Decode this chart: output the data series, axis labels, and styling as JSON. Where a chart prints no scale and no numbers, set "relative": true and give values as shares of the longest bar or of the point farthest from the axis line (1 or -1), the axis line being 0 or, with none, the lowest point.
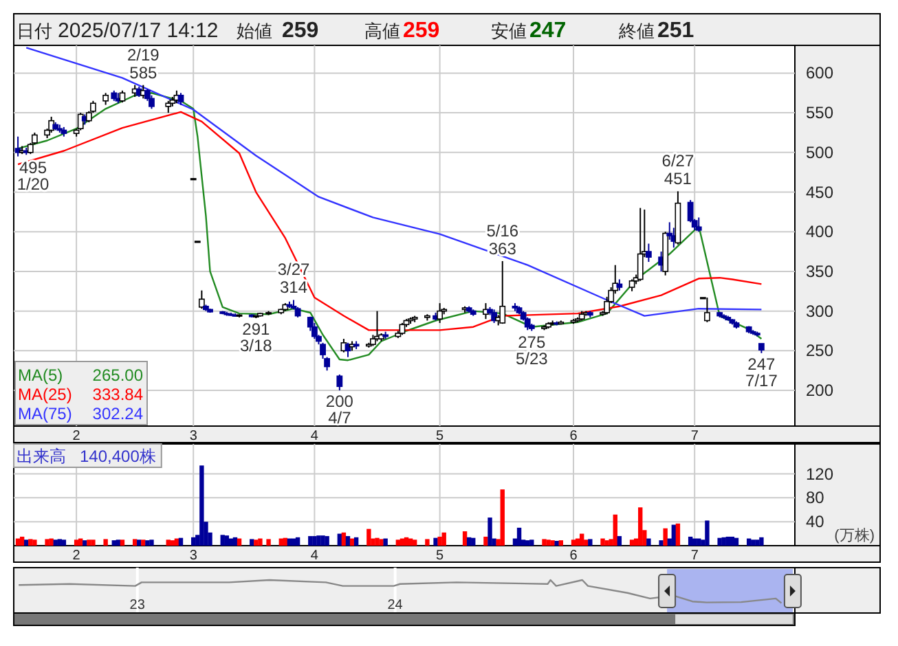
{
  "chart_data": [
    {
      "type": "other",
      "annotations": [
        "日付",
        "2025/07/17 14:12",
        "始値",
        "259",
        "高値",
        "259",
        "安値",
        "247",
        "終値",
        "251"
      ]
    },
    {
      "type": "candlestick",
      "grid": true,
      "legend": "bottom left",
      "colors": [
        "#000099",
        "#ffffff",
        "#000099",
        "#ffffff",
        "#ffffff",
        "#ffffff",
        "#ffffff",
        "#000099",
        "#000099",
        "#000099",
        "#ffffff",
        "#ffffff",
        "#000099",
        "#ffffff",
        "#ffffff",
        "#ffffff",
        "#000099",
        "#000099",
        "#ffffff",
        "#ffffff",
        "#000099",
        "#ffffff",
        "#000099",
        "#000099",
        "#ffffff",
        "#ffffff",
        "#ffffff",
        "#000099",
        "#000000",
        "#000000",
        "#ffffff",
        "#000099",
        "#000099",
        "#000099",
        "#000099",
        "#000099",
        "#000099",
        "#ffffff",
        "#000099",
        "#ffffff",
        "#ffffff",
        "#ffffff",
        "#ffffff",
        "#ffffff",
        "#000099",
        "#000099",
        "#000099",
        "#000099",
        "#000099",
        "#000099",
        "#000099",
        "#000099",
        "#000099",
        "#ffffff",
        "#000099",
        "#ffffff",
        "#000099",
        "#ffffff",
        "#ffffff",
        "#ffffff",
        "#ffffff",
        "#000099",
        "#ffffff",
        "#ffffff",
        "#ffffff",
        "#ffffff",
        "#ffffff",
        "#ffffff",
        "#000099",
        "#ffffff",
        "#ffffff",
        "#ffffff",
        "#000099",
        "#000099",
        "#ffffff",
        "#000099",
        "#000099",
        "#ffffff",
        "#ffffff",
        "#000099",
        "#000099",
        "#000099",
        "#000099",
        "#000099",
        "#ffffff",
        "#ffffff",
        "#ffffff",
        "#000099",
        "#ffffff",
        "#ffffff",
        "#ffffff",
        "#ffffff",
        "#ffffff",
        "#000099",
        "#ffffff",
        "#ffffff",
        "#ffffff",
        "#ffffff",
        "#000099",
        "#ffffff",
        "#ffffff",
        "#ffffff",
        "#ffffff",
        "#000099",
        "#000099",
        "#ffffff",
        "#000099",
        "#000099",
        "#ffffff",
        "#000099",
        "#000099",
        "#000099",
        "#000000",
        "#ffffff",
        "#000099",
        "#000099",
        "#000099",
        "#000099",
        "#000099",
        "#000099",
        "#000099",
        "#000099",
        "#000099"
      ],
      "x": [
        "2025-01-20",
        "2025-01-21",
        "2025-01-22",
        "2025-01-23",
        "2025-01-24",
        "2025-01-27",
        "2025-01-28",
        "2025-01-29",
        "2025-01-30",
        "2025-01-31",
        "2025-02-03",
        "2025-02-04",
        "2025-02-05",
        "2025-02-06",
        "2025-02-07",
        "2025-02-10",
        "2025-02-12",
        "2025-02-13",
        "2025-02-14",
        "2025-02-17",
        "2025-02-18",
        "2025-02-19",
        "2025-02-20",
        "2025-02-21",
        "2025-02-25",
        "2025-02-26",
        "2025-02-27",
        "2025-02-28",
        "2025-03-03",
        "2025-03-04",
        "2025-03-05",
        "2025-03-06",
        "2025-03-07",
        "2025-03-10",
        "2025-03-11",
        "2025-03-12",
        "2025-03-13",
        "2025-03-14",
        "2025-03-17",
        "2025-03-18",
        "2025-03-19",
        "2025-03-21",
        "2025-03-24",
        "2025-03-25",
        "2025-03-26",
        "2025-03-27",
        "2025-03-28",
        "2025-03-31",
        "2025-04-01",
        "2025-04-02",
        "2025-04-03",
        "2025-04-04",
        "2025-04-07",
        "2025-04-08",
        "2025-04-09",
        "2025-04-10",
        "2025-04-11",
        "2025-04-14",
        "2025-04-15",
        "2025-04-16",
        "2025-04-17",
        "2025-04-18",
        "2025-04-21",
        "2025-04-22",
        "2025-04-23",
        "2025-04-24",
        "2025-04-25",
        "2025-04-28",
        "2025-04-30",
        "2025-05-01",
        "2025-05-02",
        "2025-05-07",
        "2025-05-08",
        "2025-05-09",
        "2025-05-12",
        "2025-05-13",
        "2025-05-14",
        "2025-05-15",
        "2025-05-16",
        "2025-05-19",
        "2025-05-20",
        "2025-05-21",
        "2025-05-22",
        "2025-05-23",
        "2025-05-26",
        "2025-05-27",
        "2025-05-28",
        "2025-05-29",
        "2025-05-30",
        "2025-06-02",
        "2025-06-03",
        "2025-06-04",
        "2025-06-05",
        "2025-06-06",
        "2025-06-09",
        "2025-06-10",
        "2025-06-11",
        "2025-06-12",
        "2025-06-13",
        "2025-06-16",
        "2025-06-17",
        "2025-06-18",
        "2025-06-19",
        "2025-06-20",
        "2025-06-23",
        "2025-06-24",
        "2025-06-25",
        "2025-06-26",
        "2025-06-27",
        "2025-06-30",
        "2025-07-01",
        "2025-07-02",
        "2025-07-03",
        "2025-07-04",
        "2025-07-07",
        "2025-07-08",
        "2025-07-09",
        "2025-07-10",
        "2025-07-11",
        "2025-07-14",
        "2025-07-15",
        "2025-07-16",
        "2025-07-17"
      ],
      "ohlc": [
        [
          505,
          520,
          495,
          500
        ],
        [
          500,
          508,
          498,
          502
        ],
        [
          502,
          506,
          497,
          500
        ],
        [
          500,
          512,
          498,
          510
        ],
        [
          512,
          525,
          510,
          522
        ],
        [
          522,
          530,
          518,
          528
        ],
        [
          528,
          545,
          525,
          540
        ],
        [
          535,
          538,
          528,
          530
        ],
        [
          530,
          535,
          525,
          528
        ],
        [
          528,
          532,
          520,
          524
        ],
        [
          524,
          530,
          520,
          528
        ],
        [
          530,
          550,
          528,
          548
        ],
        [
          545,
          548,
          535,
          540
        ],
        [
          540,
          552,
          538,
          550
        ],
        [
          552,
          565,
          550,
          562
        ],
        [
          565,
          575,
          560,
          572
        ],
        [
          575,
          578,
          565,
          568
        ],
        [
          568,
          575,
          562,
          565
        ],
        [
          565,
          578,
          563,
          575
        ],
        [
          575,
          585,
          570,
          580
        ],
        [
          580,
          583,
          570,
          572
        ],
        [
          572,
          585,
          568,
          578
        ],
        [
          578,
          580,
          565,
          568
        ],
        [
          568,
          572,
          555,
          558
        ],
        [
          558,
          565,
          550,
          562
        ],
        [
          562,
          570,
          558,
          566
        ],
        [
          566,
          578,
          562,
          572
        ],
        [
          572,
          575,
          560,
          564
        ],
        [
          467,
          467,
          467,
          467
        ],
        [
          388,
          388,
          388,
          388
        ],
        [
          305,
          326,
          303,
          315
        ],
        [
          306,
          308,
          300,
          302
        ],
        [
          302,
          303,
          298,
          299
        ],
        [
          299,
          300,
          296,
          297
        ],
        [
          297,
          299,
          294,
          296
        ],
        [
          296,
          298,
          294,
          295
        ],
        [
          295,
          297,
          293,
          294
        ],
        [
          294,
          296,
          292,
          295
        ],
        [
          295,
          296,
          292,
          293
        ],
        [
          293,
          295,
          291,
          294
        ],
        [
          294,
          298,
          293,
          297
        ],
        [
          297,
          300,
          295,
          298
        ],
        [
          298,
          303,
          296,
          302
        ],
        [
          302,
          310,
          300,
          308
        ],
        [
          308,
          312,
          304,
          306
        ],
        [
          306,
          314,
          302,
          304
        ],
        [
          303,
          305,
          292,
          294
        ],
        [
          292,
          293,
          275,
          280
        ],
        [
          280,
          285,
          265,
          268
        ],
        [
          268,
          270,
          258,
          262
        ],
        [
          258,
          260,
          240,
          245
        ],
        [
          240,
          242,
          225,
          230
        ],
        [
          218,
          220,
          200,
          205
        ],
        [
          250,
          265,
          248,
          260
        ],
        [
          258,
          260,
          242,
          250
        ],
        [
          255,
          262,
          250,
          258
        ],
        [
          258,
          262,
          252,
          256
        ],
        [
          256,
          260,
          254,
          258
        ],
        [
          258,
          270,
          256,
          265
        ],
        [
          265,
          300,
          262,
          268
        ],
        [
          265,
          272,
          262,
          270
        ],
        [
          270,
          274,
          265,
          268
        ],
        [
          268,
          275,
          266,
          272
        ],
        [
          272,
          285,
          270,
          283
        ],
        [
          283,
          290,
          280,
          288
        ],
        [
          288,
          292,
          284,
          290
        ],
        [
          290,
          294,
          286,
          292
        ],
        [
          292,
          296,
          288,
          294
        ],
        [
          294,
          298,
          288,
          290
        ],
        [
          290,
          310,
          285,
          300
        ],
        [
          300,
          304,
          296,
          302
        ],
        [
          302,
          306,
          298,
          304
        ],
        [
          304,
          306,
          298,
          300
        ],
        [
          300,
          302,
          294,
          296
        ],
        [
          296,
          310,
          290,
          302
        ],
        [
          302,
          305,
          295,
          298
        ],
        [
          298,
          302,
          285,
          288
        ],
        [
          288,
          295,
          282,
          292
        ],
        [
          285,
          363,
          284,
          306
        ],
        [
          306,
          310,
          300,
          304
        ],
        [
          304,
          306,
          296,
          298
        ],
        [
          298,
          300,
          288,
          290
        ],
        [
          290,
          292,
          276,
          280
        ],
        [
          282,
          284,
          275,
          278
        ],
        [
          278,
          282,
          276,
          280
        ],
        [
          280,
          286,
          278,
          284
        ],
        [
          284,
          288,
          282,
          285
        ],
        [
          285,
          287,
          282,
          284
        ],
        [
          284,
          288,
          283,
          286
        ],
        [
          286,
          290,
          284,
          288
        ],
        [
          288,
          292,
          286,
          290
        ],
        [
          290,
          300,
          288,
          296
        ],
        [
          296,
          300,
          294,
          298
        ],
        [
          298,
          300,
          292,
          295
        ],
        [
          296,
          300,
          294,
          298
        ],
        [
          298,
          318,
          296,
          312
        ],
        [
          312,
          330,
          310,
          326
        ],
        [
          326,
          358,
          322,
          335
        ],
        [
          334,
          340,
          326,
          330
        ],
        [
          330,
          340,
          325,
          338
        ],
        [
          338,
          346,
          334,
          342
        ],
        [
          340,
          430,
          338,
          372
        ],
        [
          372,
          428,
          368,
          375
        ],
        [
          375,
          385,
          362,
          368
        ],
        [
          368,
          375,
          350,
          358
        ],
        [
          350,
          400,
          345,
          398
        ],
        [
          398,
          412,
          390,
          395
        ],
        [
          395,
          405,
          380,
          388
        ],
        [
          386,
          451,
          384,
          436
        ],
        [
          437,
          440,
          412,
          414
        ],
        [
          414,
          416,
          402,
          406
        ],
        [
          406,
          418,
          400,
          402
        ],
        [
          317,
          317,
          317,
          317
        ],
        [
          288,
          317,
          286,
          298
        ],
        [
          298,
          299,
          292,
          294
        ],
        [
          294,
          296,
          290,
          292
        ],
        [
          292,
          294,
          288,
          289
        ],
        [
          289,
          290,
          283,
          285
        ],
        [
          285,
          287,
          278,
          280
        ],
        [
          280,
          281,
          272,
          274
        ],
        [
          274,
          276,
          270,
          272
        ],
        [
          272,
          274,
          268,
          270
        ],
        [
          259,
          259,
          247,
          251
        ]
      ],
      "series": [
        {
          "name": "MA(5)",
          "type": "line",
          "color": "#228b22",
          "x": [
            "2025-01-20",
            "2025-01-27",
            "2025-02-03",
            "2025-02-10",
            "2025-02-17",
            "2025-02-21",
            "2025-02-28",
            "2025-03-03",
            "2025-03-04",
            "2025-03-05",
            "2025-03-06",
            "2025-03-07",
            "2025-03-10",
            "2025-03-14",
            "2025-03-21",
            "2025-03-27",
            "2025-03-31",
            "2025-04-03",
            "2025-04-07",
            "2025-04-09",
            "2025-04-14",
            "2025-04-17",
            "2025-04-23",
            "2025-04-30",
            "2025-05-09",
            "2025-05-16",
            "2025-05-23",
            "2025-06-03",
            "2025-06-10",
            "2025-06-17",
            "2025-06-25",
            "2025-07-02",
            "2025-07-07",
            "2025-07-14",
            "2025-07-17"
          ],
          "values": [
            505,
            515,
            530,
            555,
            572,
            575,
            565,
            555,
            520,
            470,
            420,
            350,
            305,
            297,
            296,
            303,
            298,
            270,
            239,
            238,
            245,
            262,
            275,
            288,
            300,
            297,
            280,
            286,
            297,
            340,
            372,
            407,
            294,
            277,
            265
          ]
        },
        {
          "name": "MA(25)",
          "type": "line",
          "color": "#ff0000",
          "x": [
            "2025-01-20",
            "2025-01-31",
            "2025-02-14",
            "2025-02-28",
            "2025-03-05",
            "2025-03-14",
            "2025-03-18",
            "2025-03-25",
            "2025-04-01",
            "2025-04-08",
            "2025-04-14",
            "2025-05-01",
            "2025-05-09",
            "2025-05-16",
            "2025-06-03",
            "2025-06-13",
            "2025-06-23",
            "2025-07-02",
            "2025-07-07",
            "2025-07-10",
            "2025-07-17"
          ],
          "values": [
            485,
            502,
            531,
            551,
            539,
            499,
            450,
            392,
            317,
            294,
            276,
            276,
            280,
            294,
            297,
            306,
            320,
            341,
            342,
            340,
            334
          ]
        },
        {
          "name": "MA(75)",
          "type": "line",
          "color": "#3333ff",
          "x": [
            "2025-01-22",
            "2025-02-14",
            "2025-03-03",
            "2025-03-18",
            "2025-04-02",
            "2025-04-15",
            "2025-05-01",
            "2025-05-22",
            "2025-06-10",
            "2025-06-19",
            "2025-07-02",
            "2025-07-17"
          ],
          "values": [
            632,
            594,
            554,
            496,
            444,
            418,
            397,
            358,
            314,
            294,
            303,
            302
          ]
        }
      ],
      "annotations": [
        {
          "text": "495",
          "x": "2025-01-20",
          "y": 495
        },
        {
          "text": "1/20",
          "x": "2025-01-20",
          "y": 495
        },
        {
          "text": "585",
          "x": "2025-02-19",
          "y": 585
        },
        {
          "text": "2/19",
          "x": "2025-02-19",
          "y": 585
        },
        {
          "text": "291",
          "x": "2025-03-18",
          "y": 291
        },
        {
          "text": "3/18",
          "x": "2025-03-18",
          "y": 291
        },
        {
          "text": "314",
          "x": "2025-03-27",
          "y": 314
        },
        {
          "text": "3/27",
          "x": "2025-03-27",
          "y": 314
        },
        {
          "text": "200",
          "x": "2025-04-07",
          "y": 200
        },
        {
          "text": "4/7",
          "x": "2025-04-07",
          "y": 200
        },
        {
          "text": "363",
          "x": "2025-05-16",
          "y": 363
        },
        {
          "text": "5/16",
          "x": "2025-05-16",
          "y": 363
        },
        {
          "text": "275",
          "x": "2025-05-23",
          "y": 275
        },
        {
          "text": "5/23",
          "x": "2025-05-23",
          "y": 275
        },
        {
          "text": "451",
          "x": "2025-06-27",
          "y": 451
        },
        {
          "text": "6/27",
          "x": "2025-06-27",
          "y": 451
        },
        {
          "text": "247",
          "x": "2025-07-17",
          "y": 247
        },
        {
          "text": "7/17",
          "x": "2025-07-17",
          "y": 247
        },
        "265.00",
        "333.84",
        "302.24"
      ],
      "xlim": [
        "2025-01-19",
        "2025-07-25"
      ],
      "xticks": [
        {
          "value": "2025-02-03",
          "label": "2"
        },
        {
          "value": "2025-03-03",
          "label": "3"
        },
        {
          "value": "2025-04-01",
          "label": "4"
        },
        {
          "value": "2025-05-01",
          "label": "5"
        },
        {
          "value": "2025-06-02",
          "label": "6"
        },
        {
          "value": "2025-07-01",
          "label": "7"
        }
      ],
      "ylim": [
        155,
        635
      ],
      "yticks": [
        200,
        250,
        300,
        350,
        400,
        450,
        500,
        550,
        600
      ]
    },
    {
      "type": "bar",
      "title": "出来高",
      "ylabel": "(万株)",
      "annotations": [
        "140,400株"
      ],
      "grid": true,
      "x": [
        "2025-01-20",
        "2025-01-21",
        "2025-01-22",
        "2025-01-23",
        "2025-01-24",
        "2025-01-27",
        "2025-01-28",
        "2025-01-29",
        "2025-01-30",
        "2025-01-31",
        "2025-02-03",
        "2025-02-04",
        "2025-02-05",
        "2025-02-06",
        "2025-02-07",
        "2025-02-10",
        "2025-02-12",
        "2025-02-13",
        "2025-02-14",
        "2025-02-17",
        "2025-02-18",
        "2025-02-19",
        "2025-02-20",
        "2025-02-21",
        "2025-02-25",
        "2025-02-26",
        "2025-02-27",
        "2025-02-28",
        "2025-03-03",
        "2025-03-04",
        "2025-03-05",
        "2025-03-06",
        "2025-03-07",
        "2025-03-10",
        "2025-03-11",
        "2025-03-12",
        "2025-03-13",
        "2025-03-14",
        "2025-03-17",
        "2025-03-18",
        "2025-03-19",
        "2025-03-21",
        "2025-03-24",
        "2025-03-25",
        "2025-03-26",
        "2025-03-27",
        "2025-03-28",
        "2025-03-31",
        "2025-04-01",
        "2025-04-02",
        "2025-04-03",
        "2025-04-04",
        "2025-04-07",
        "2025-04-08",
        "2025-04-09",
        "2025-04-10",
        "2025-04-11",
        "2025-04-14",
        "2025-04-15",
        "2025-04-16",
        "2025-04-17",
        "2025-04-18",
        "2025-04-21",
        "2025-04-22",
        "2025-04-23",
        "2025-04-24",
        "2025-04-25",
        "2025-04-28",
        "2025-04-30",
        "2025-05-01",
        "2025-05-02",
        "2025-05-07",
        "2025-05-08",
        "2025-05-09",
        "2025-05-12",
        "2025-05-13",
        "2025-05-14",
        "2025-05-15",
        "2025-05-16",
        "2025-05-19",
        "2025-05-20",
        "2025-05-21",
        "2025-05-22",
        "2025-05-23",
        "2025-05-26",
        "2025-05-27",
        "2025-05-28",
        "2025-05-29",
        "2025-05-30",
        "2025-06-02",
        "2025-06-03",
        "2025-06-04",
        "2025-06-05",
        "2025-06-06",
        "2025-06-09",
        "2025-06-10",
        "2025-06-11",
        "2025-06-12",
        "2025-06-13",
        "2025-06-16",
        "2025-06-17",
        "2025-06-18",
        "2025-06-19",
        "2025-06-20",
        "2025-06-23",
        "2025-06-24",
        "2025-06-25",
        "2025-06-26",
        "2025-06-27",
        "2025-06-30",
        "2025-07-01",
        "2025-07-02",
        "2025-07-03",
        "2025-07-04",
        "2025-07-07",
        "2025-07-08",
        "2025-07-09",
        "2025-07-10",
        "2025-07-11",
        "2025-07-14",
        "2025-07-15",
        "2025-07-16",
        "2025-07-17"
      ],
      "values": [
        12,
        15,
        10,
        11,
        10,
        11,
        12,
        10,
        11,
        10,
        10,
        12,
        9,
        10,
        10,
        11,
        9,
        10,
        10,
        11,
        10,
        10,
        9,
        10,
        10,
        9,
        12,
        13,
        14,
        18,
        134,
        40,
        22,
        18,
        17,
        12,
        14,
        12,
        11,
        10,
        12,
        11,
        12,
        13,
        12,
        12,
        14,
        16,
        16,
        17,
        17,
        16,
        20,
        22,
        16,
        12,
        14,
        28,
        12,
        13,
        11,
        12,
        10,
        12,
        14,
        12,
        10,
        11,
        13,
        15,
        22,
        24,
        14,
        13,
        15,
        47,
        12,
        11,
        94,
        12,
        30,
        10,
        9,
        10,
        11,
        10,
        9,
        8,
        9,
        10,
        12,
        20,
        10,
        11,
        12,
        9,
        11,
        52,
        16,
        10,
        12,
        64,
        26,
        12,
        9,
        29,
        12,
        35,
        37,
        15,
        12,
        12,
        10,
        42,
        13,
        14,
        15,
        15,
        13,
        12,
        10,
        10,
        14
      ],
      "colors": [
        "#ff0000",
        "#ff0000",
        "#000099",
        "#ff0000",
        "#ff0000",
        "#ff0000",
        "#ff0000",
        "#000099",
        "#000099",
        "#000099",
        "#ff0000",
        "#ff0000",
        "#000099",
        "#ff0000",
        "#ff0000",
        "#ff0000",
        "#000099",
        "#000099",
        "#ff0000",
        "#ff0000",
        "#000099",
        "#ff0000",
        "#000099",
        "#000099",
        "#ff0000",
        "#ff0000",
        "#ff0000",
        "#000099",
        "#000099",
        "#000099",
        "#000099",
        "#000099",
        "#000099",
        "#000099",
        "#000099",
        "#000099",
        "#000099",
        "#ff0000",
        "#000099",
        "#ff0000",
        "#ff0000",
        "#ff0000",
        "#ff0000",
        "#ff0000",
        "#000099",
        "#000099",
        "#000099",
        "#000099",
        "#000099",
        "#000099",
        "#000099",
        "#000099",
        "#000099",
        "#ff0000",
        "#000099",
        "#ff0000",
        "#000099",
        "#ff0000",
        "#ff0000",
        "#ff0000",
        "#ff0000",
        "#000099",
        "#ff0000",
        "#ff0000",
        "#ff0000",
        "#ff0000",
        "#ff0000",
        "#ff0000",
        "#000099",
        "#ff0000",
        "#ff0000",
        "#ff0000",
        "#000099",
        "#000099",
        "#ff0000",
        "#000099",
        "#000099",
        "#ff0000",
        "#ff0000",
        "#000099",
        "#000099",
        "#000099",
        "#000099",
        "#000099",
        "#ff0000",
        "#ff0000",
        "#ff0000",
        "#000099",
        "#ff0000",
        "#ff0000",
        "#ff0000",
        "#ff0000",
        "#ff0000",
        "#000099",
        "#ff0000",
        "#ff0000",
        "#ff0000",
        "#ff0000",
        "#000099",
        "#ff0000",
        "#ff0000",
        "#ff0000",
        "#ff0000",
        "#000099",
        "#000099",
        "#ff0000",
        "#000099",
        "#000099",
        "#ff0000",
        "#000099",
        "#000099",
        "#000099",
        "#000099",
        "#000099",
        "#000099",
        "#000099",
        "#000099",
        "#000099",
        "#000099",
        "#000099",
        "#000099",
        "#000099",
        "#000099"
      ],
      "xlim": [
        "2025-01-19",
        "2025-07-25"
      ],
      "xticks": [
        {
          "value": "2025-02-03",
          "label": "2"
        },
        {
          "value": "2025-03-03",
          "label": "3"
        },
        {
          "value": "2025-04-01",
          "label": "4"
        },
        {
          "value": "2025-05-01",
          "label": "5"
        },
        {
          "value": "2025-06-02",
          "label": "6"
        },
        {
          "value": "2025-07-01",
          "label": "7"
        }
      ],
      "ylim": [
        0,
        170
      ],
      "yticks": [
        40,
        80,
        120
      ]
    },
    {
      "type": "line",
      "relative": true,
      "tick_labels": "x",
      "series": [
        {
          "color": "#888888",
          "x": [
            "2022-07-17",
            "2022-09-27",
            "2022-12-29",
            "2023-01-07",
            "2023-05-11",
            "2023-07-07",
            "2023-09-25",
            "2023-10-19",
            "2023-12-30",
            "2024-01-08",
            "2024-03-28",
            "2024-08-04",
            "2024-08-08",
            "2024-08-16",
            "2024-09-22",
            "2024-09-30",
            "2024-11-25",
            "2024-12-27",
            "2025-01-29",
            "2025-02-25",
            "2025-03-17",
            "2025-05-05",
            "2025-06-23",
            "2025-07-01"
          ],
          "values": [
            0.85,
            0.88,
            0.82,
            0.93,
            0.93,
            1.0,
            0.93,
            0.82,
            0.82,
            0.88,
            0.93,
            0.88,
            1.0,
            0.82,
            1.0,
            0.82,
            0.61,
            0.44,
            0.53,
            0.35,
            0.32,
            0.33,
            0.44,
            0.3
          ]
        }
      ],
      "bands": [
        {
          "axis": "x",
          "from": "2025-01-20",
          "to": "2025-07-17",
          "color": "#aab4f0"
        }
      ],
      "xlim": [
        "2022-07-10",
        "2025-07-20"
      ],
      "xticks": [
        {
          "value": "2023-01-01",
          "label": "23"
        },
        {
          "value": "2024-01-01",
          "label": "24"
        }
      ]
    }
  ]
}
